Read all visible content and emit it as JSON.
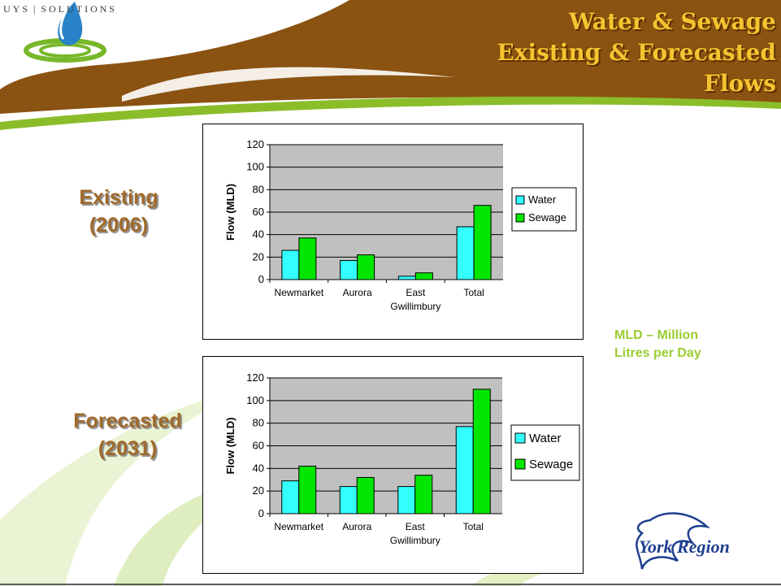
{
  "header": {
    "logo_text_left": "UYS",
    "logo_text_right": "SOLUTIONS",
    "title_lines": [
      "Water & Sewage",
      "Existing & Forecasted",
      "Flows"
    ]
  },
  "sections": {
    "existing_label": [
      "Existing",
      "(2006)"
    ],
    "forecasted_label": [
      "Forecasted",
      "(2031)"
    ]
  },
  "note": [
    "MLD – Million",
    "Litres per Day"
  ],
  "york_logo_text": "York Region",
  "colors": {
    "water": "#33ffff",
    "sewage": "#00e600",
    "plot_bg": "#c0c0c0",
    "title_text": "#f5c431",
    "label_text": "#a0692a",
    "note_text": "#9acd32"
  },
  "chart_data": [
    {
      "type": "bar",
      "categories": [
        [
          "Newmarket"
        ],
        [
          "Aurora"
        ],
        [
          "East",
          "Gwillimbury"
        ],
        [
          "Total"
        ]
      ],
      "series": [
        {
          "name": "Water",
          "values": [
            26,
            17,
            3,
            47
          ]
        },
        {
          "name": "Sewage",
          "values": [
            37,
            22,
            6,
            66
          ]
        }
      ],
      "ylabel": "Flow (MLD)",
      "ylim": [
        0,
        120
      ],
      "yticks": [
        0,
        20,
        40,
        60,
        80,
        100,
        120
      ],
      "grid": true,
      "legend": "right"
    },
    {
      "type": "bar",
      "categories": [
        [
          "Newmarket"
        ],
        [
          "Aurora"
        ],
        [
          "East",
          "Gwillimbury"
        ],
        [
          "Total"
        ]
      ],
      "series": [
        {
          "name": "Water",
          "values": [
            29,
            24,
            24,
            77
          ]
        },
        {
          "name": "Sewage",
          "values": [
            42,
            32,
            34,
            110
          ]
        }
      ],
      "ylabel": "Flow (MLD)",
      "ylim": [
        0,
        120
      ],
      "yticks": [
        0,
        20,
        40,
        60,
        80,
        100,
        120
      ],
      "grid": true,
      "legend": "right"
    }
  ]
}
